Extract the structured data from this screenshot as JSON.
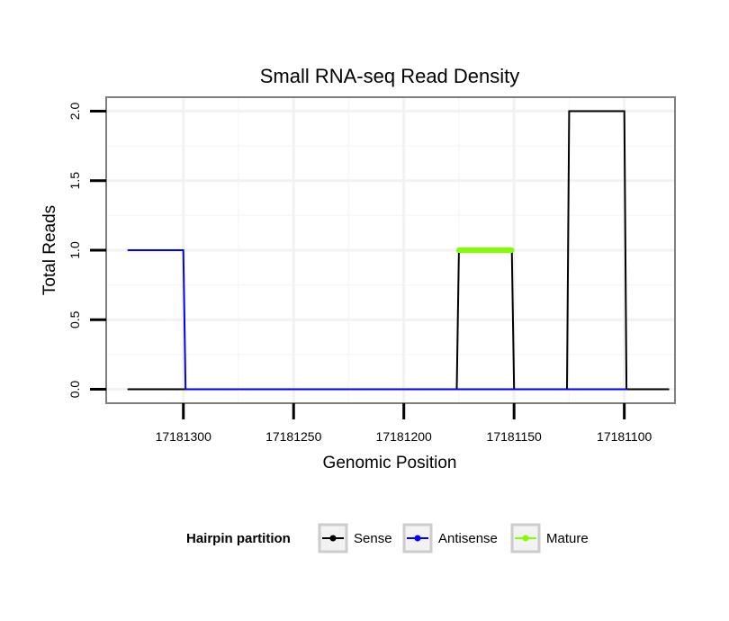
{
  "chart_data": {
    "type": "line",
    "title": "Small RNA-seq Read Density",
    "xlabel": "Genomic Position",
    "ylabel": "Total Reads",
    "x_reversed": true,
    "xlim": [
      17181077,
      17181335
    ],
    "ylim": [
      -0.1,
      2.1
    ],
    "x_ticks": [
      17181300,
      17181250,
      17181200,
      17181150,
      17181100
    ],
    "x_tick_labels": [
      "17181300",
      "17181250",
      "17181200",
      "17181150",
      "17181100"
    ],
    "y_ticks": [
      0.0,
      0.5,
      1.0,
      1.5,
      2.0
    ],
    "y_tick_labels": [
      "0.0",
      "0.5",
      "1.0",
      "1.5",
      "2.0"
    ],
    "grid": true,
    "legend_title": "Hairpin partition",
    "legend_position": "bottom",
    "series": [
      {
        "name": "Sense",
        "color": "#000000",
        "x": [
          17181325,
          17181176,
          17181175,
          17181151,
          17181150,
          17181126,
          17181125,
          17181100,
          17181099,
          17181080
        ],
        "y": [
          0,
          0,
          1,
          1,
          0,
          0,
          2,
          2,
          0,
          0
        ]
      },
      {
        "name": "Antisense",
        "color": "#0000ff",
        "x": [
          17181325,
          17181300,
          17181299,
          17181176,
          17181175,
          17181151,
          17181150,
          17181126,
          17181125,
          17181100,
          17181099
        ],
        "y": [
          1,
          1,
          0,
          0,
          0,
          0,
          0,
          0,
          0,
          0,
          0
        ]
      },
      {
        "name": "Mature",
        "color": "#7fff00",
        "x": [
          17181175,
          17181151
        ],
        "y": [
          1,
          1
        ]
      }
    ]
  }
}
